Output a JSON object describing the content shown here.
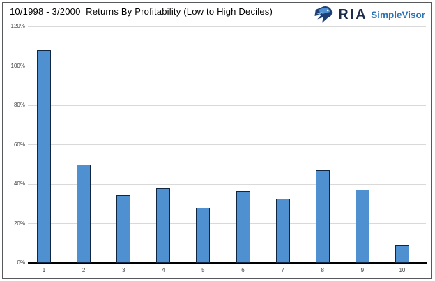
{
  "header": {
    "title": "10/1998 - 3/2000  Returns By Profitability (Low to High Deciles)",
    "logo": {
      "brand": "RIA",
      "product": "SimpleVisor",
      "icon": "eagle-head-icon",
      "brand_color": "#1b2b4a",
      "product_color": "#2e74b5"
    }
  },
  "chart_data": {
    "type": "bar",
    "title": "10/1998 - 3/2000  Returns By Profitability (Low to High Deciles)",
    "categories": [
      "1",
      "2",
      "3",
      "4",
      "5",
      "6",
      "7",
      "8",
      "9",
      "10"
    ],
    "values": [
      108,
      50,
      34.5,
      38,
      28,
      36.5,
      32.5,
      47,
      37,
      9
    ],
    "unit": "%",
    "xlabel": "",
    "ylabel": "",
    "ylim": [
      0,
      120
    ],
    "ytick_step": 20,
    "ytick_labels": [
      "0%",
      "20%",
      "40%",
      "60%",
      "80%",
      "100%",
      "120%"
    ],
    "grid": true,
    "legend": false,
    "bar_fill": "#4f90d1",
    "bar_border": "#10253f",
    "gridline_color": "#d9d9d9",
    "axis_color": "#000000"
  }
}
